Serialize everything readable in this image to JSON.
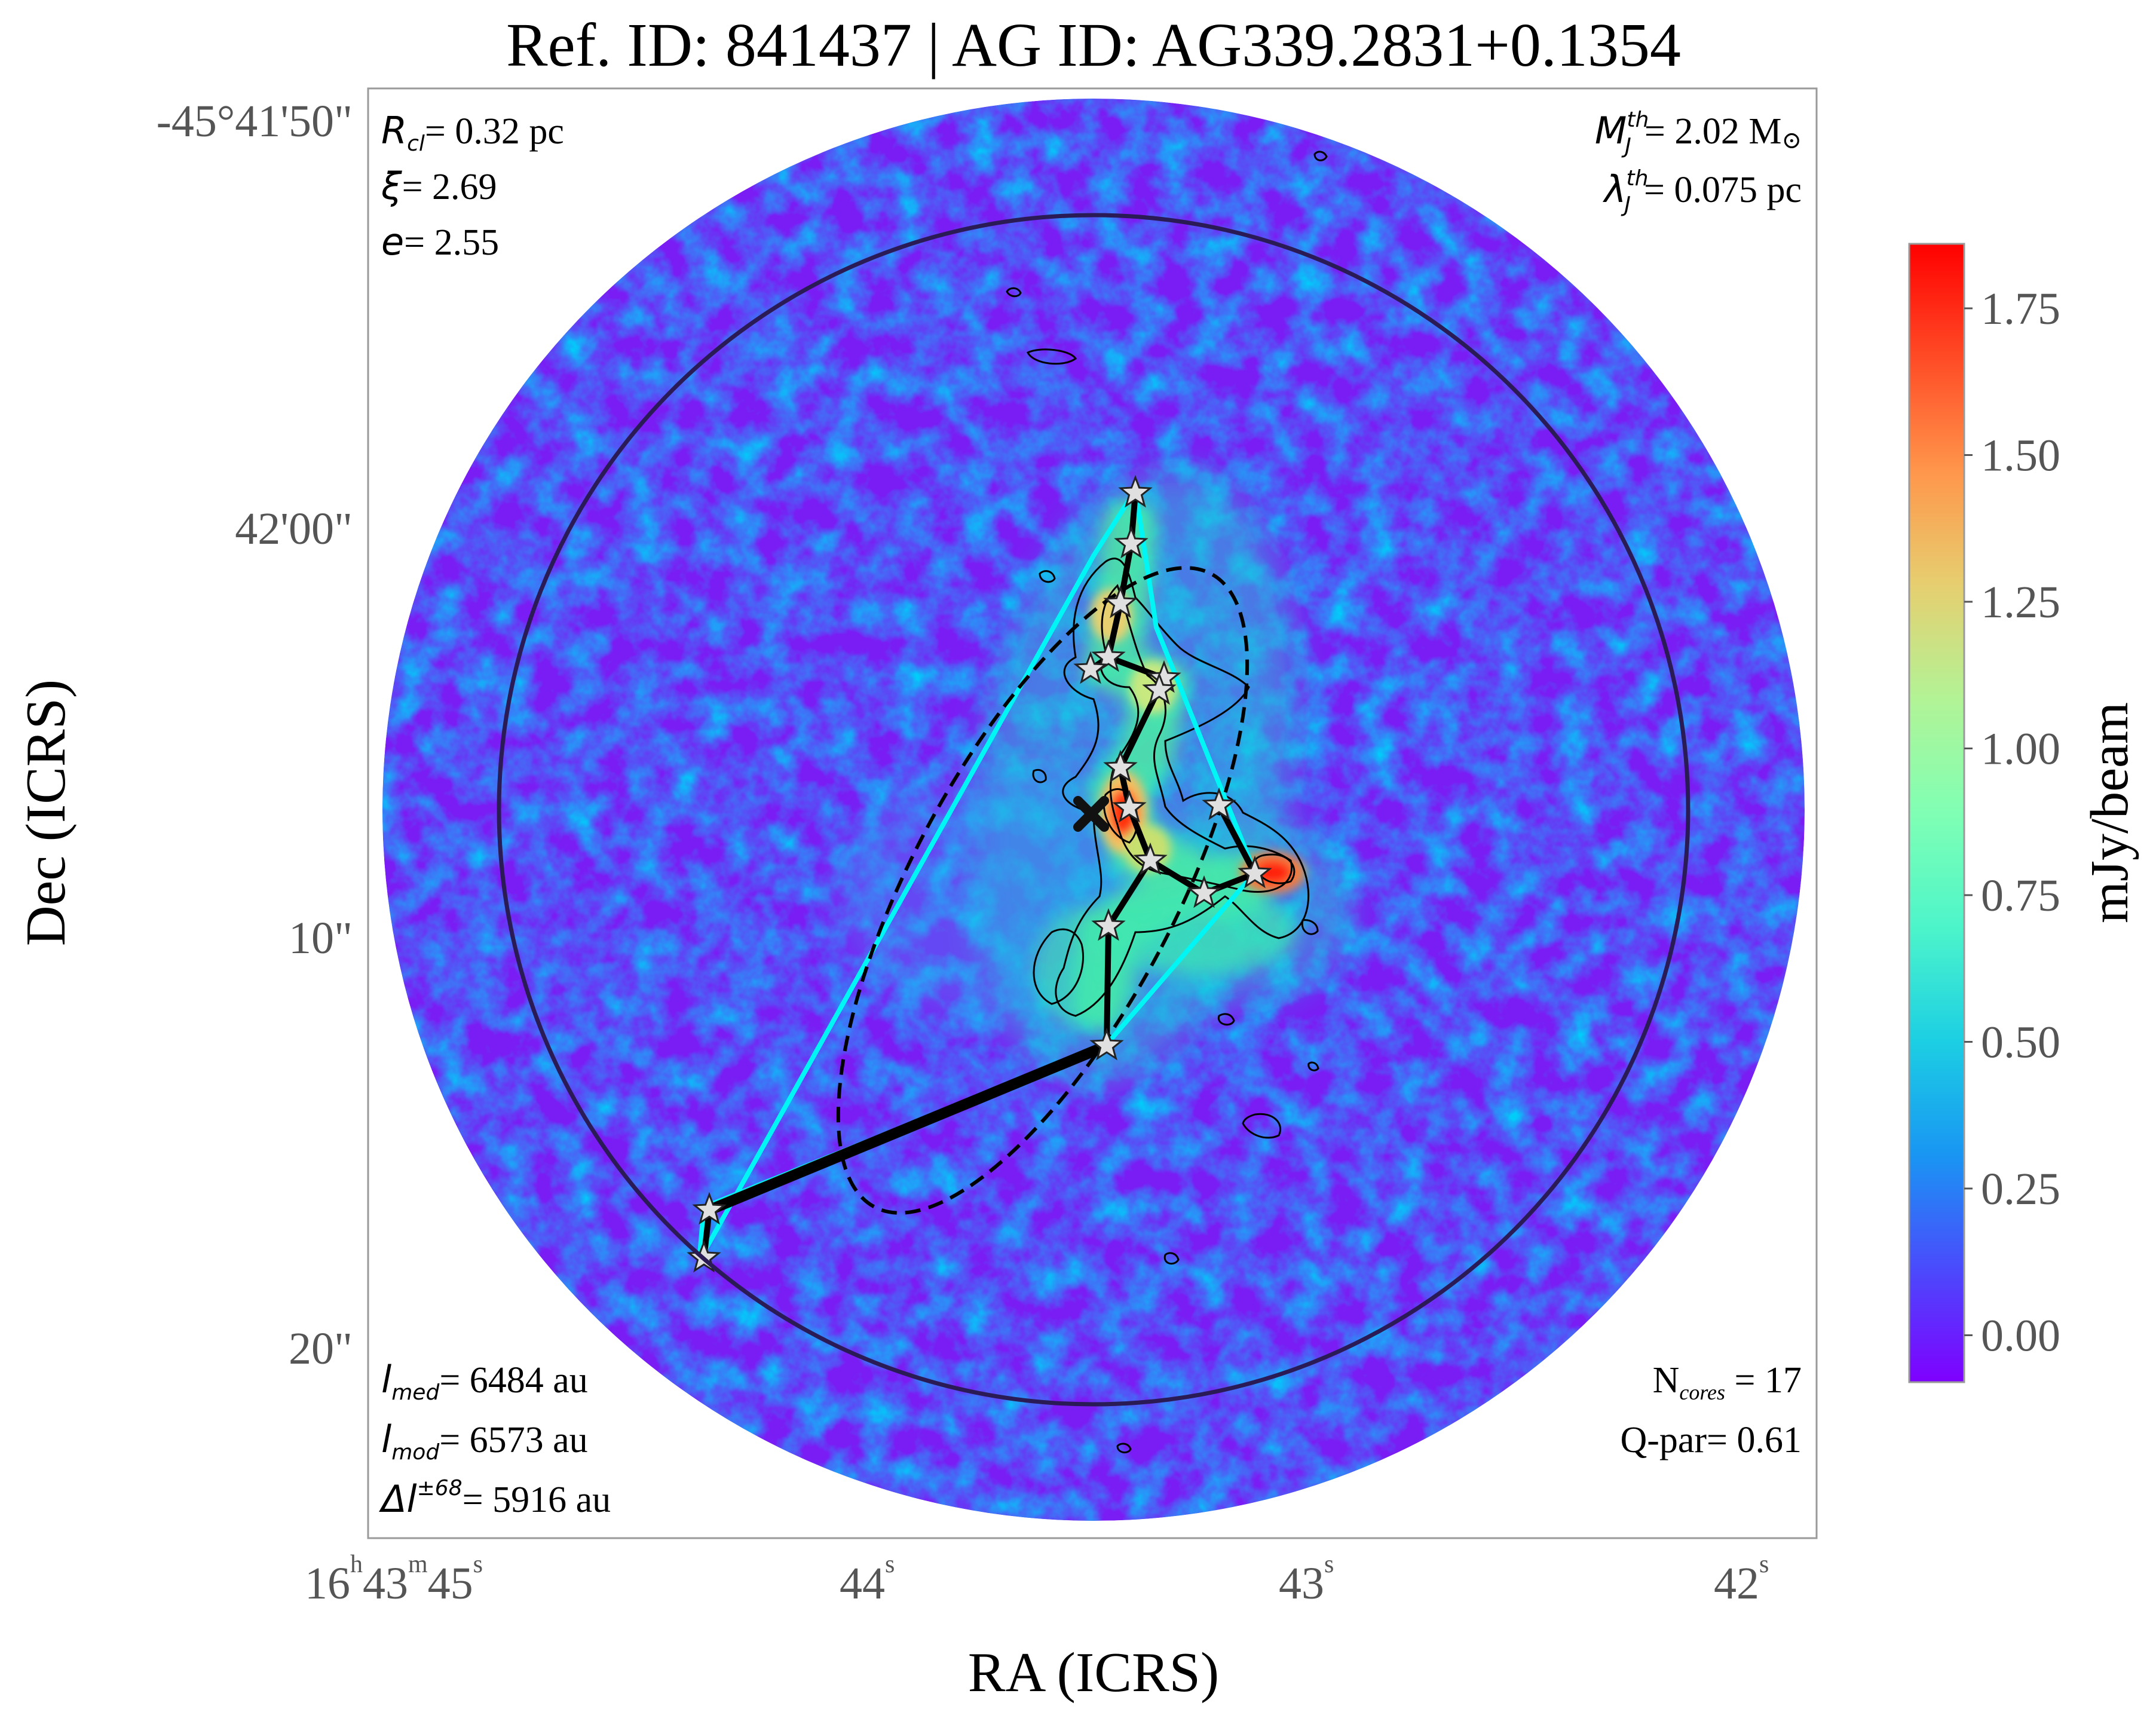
{
  "chart_data": {
    "type": "scatter",
    "title": "Ref. ID: 841437 | AG ID: AG339.2831+0.1354",
    "xlabel": "RA (ICRS)",
    "ylabel": "Dec (ICRS)",
    "x_ticks": [
      {
        "pre": "16",
        "h": "h",
        "mid": "43",
        "m": "m",
        "val": "45",
        "s": "s"
      },
      {
        "val": "44",
        "s": "s"
      },
      {
        "val": "43",
        "s": "s"
      },
      {
        "val": "42",
        "s": "s"
      }
    ],
    "y_ticks": [
      "-45°41'50\"",
      "42'00\"",
      "10\"",
      "20\""
    ],
    "colorbar": {
      "label": "mJy/beam",
      "min": -0.08,
      "max": 1.86,
      "ticks": [
        "0.00",
        "0.25",
        "0.50",
        "0.75",
        "1.00",
        "1.25",
        "1.50",
        "1.75"
      ],
      "tick_values": [
        0.0,
        0.25,
        0.5,
        0.75,
        1.0,
        1.25,
        1.5,
        1.75
      ],
      "colormap": "rainbow"
    },
    "annotations": {
      "top_left": [
        {
          "sym": "R",
          "sub": "cl",
          "text": "= 0.32 pc"
        },
        {
          "sym": "ξ",
          "text": "= 2.69"
        },
        {
          "sym": "e",
          "text": "= 2.55"
        }
      ],
      "top_right": [
        {
          "sym": "M",
          "sub": "J",
          "sup": "th",
          "text": "= 2.02 M",
          "sun": "⊙"
        },
        {
          "sym": "λ",
          "sub": "J",
          "sup": "th",
          "text": "= 0.075 pc"
        }
      ],
      "bottom_left": [
        {
          "sym": "l",
          "sub": "med",
          "text": "= 6484 au"
        },
        {
          "sym": "l",
          "sub": "mod",
          "text": "= 6573 au"
        },
        {
          "sym": "Δl",
          "sup": "±68",
          "text": "= 5916 au"
        }
      ],
      "bottom_right": [
        {
          "sym": "N",
          "sub": "cores",
          "text": " = 17"
        },
        {
          "text": "Q-par= 0.61"
        }
      ]
    },
    "colors": {
      "field_base": "#7a1cf4",
      "mst_edges": "#000000",
      "hull": "#00f5f5",
      "outer_circle": "#2a1a55",
      "core_marker": "#e0e0e0",
      "center_cross": "#111111"
    }
  }
}
